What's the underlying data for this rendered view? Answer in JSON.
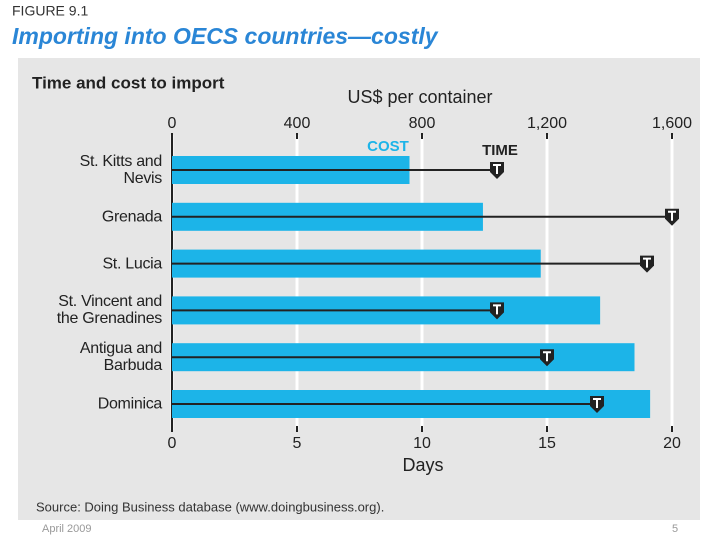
{
  "figure_label": "FIGURE 9.1",
  "slide_footer": {
    "date": "April 2009",
    "page": "5"
  },
  "chart_data": {
    "type": "bar",
    "title": "Importing into OECS countries—costly",
    "subtitle": "Time and cost to import",
    "xlabel": "US$ per container",
    "x2label": "Days",
    "source": "Source: Doing Business database (www.doingbusiness.org).",
    "categories": [
      "St. Kitts and\nNevis",
      "Grenada",
      "St. Lucia",
      "St. Vincent and\nthe Grenadines",
      "Antigua and\nBarbuda",
      "Dominica"
    ],
    "xlim": [
      0,
      1600
    ],
    "xticks": [
      0,
      400,
      800,
      {
        "value": 1200,
        "label": "1,200"
      },
      {
        "value": 1600,
        "label": "1,600"
      }
    ],
    "x2lim": [
      0,
      20
    ],
    "x2ticks": [
      0,
      5,
      10,
      15,
      20
    ],
    "grid": true,
    "series": [
      {
        "name": "COST",
        "color": "#1cb4e8",
        "values": [
          760,
          995,
          1180,
          1370,
          1480,
          1530
        ]
      },
      {
        "name": "TIME",
        "color": "#222222",
        "axis": "x2",
        "values": [
          13,
          20,
          19,
          13,
          15,
          17
        ]
      }
    ]
  }
}
